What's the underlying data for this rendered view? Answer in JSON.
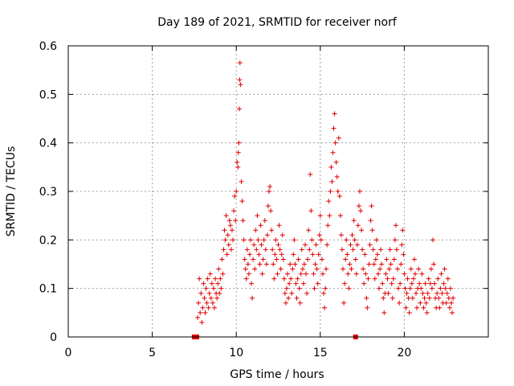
{
  "chart_data": {
    "type": "scatter",
    "title": "Day 189 of 2021, SRMTID for receiver norf",
    "xlabel": "GPS time / hours",
    "ylabel": "SRMTID / TECUs",
    "xlim": [
      0,
      25
    ],
    "ylim": [
      0,
      0.6
    ],
    "xticks": [
      "0",
      "5",
      "10",
      "15",
      "20"
    ],
    "yticks": [
      "0",
      "0.1",
      "0.2",
      "0.3",
      "0.4",
      "0.5",
      "0.6"
    ],
    "grid": true,
    "marker": "+",
    "color": "#e00000",
    "gap_markers_x": [
      7.5,
      7.65,
      17.1
    ],
    "series": [
      {
        "name": "SRMTID",
        "points": [
          [
            7.7,
            0.04
          ],
          [
            7.75,
            0.07
          ],
          [
            7.8,
            0.12
          ],
          [
            7.85,
            0.05
          ],
          [
            7.9,
            0.09
          ],
          [
            7.95,
            0.03
          ],
          [
            8.0,
            0.06
          ],
          [
            8.05,
            0.11
          ],
          [
            8.1,
            0.08
          ],
          [
            8.15,
            0.05
          ],
          [
            8.2,
            0.1
          ],
          [
            8.25,
            0.07
          ],
          [
            8.3,
            0.12
          ],
          [
            8.35,
            0.06
          ],
          [
            8.4,
            0.09
          ],
          [
            8.45,
            0.13
          ],
          [
            8.5,
            0.08
          ],
          [
            8.55,
            0.11
          ],
          [
            8.6,
            0.07
          ],
          [
            8.65,
            0.1
          ],
          [
            8.7,
            0.06
          ],
          [
            8.75,
            0.12
          ],
          [
            8.8,
            0.09
          ],
          [
            8.85,
            0.08
          ],
          [
            8.9,
            0.11
          ],
          [
            8.95,
            0.14
          ],
          [
            9.0,
            0.09
          ],
          [
            9.05,
            0.12
          ],
          [
            9.1,
            0.1
          ],
          [
            9.15,
            0.16
          ],
          [
            9.2,
            0.13
          ],
          [
            9.25,
            0.18
          ],
          [
            9.3,
            0.22
          ],
          [
            9.35,
            0.2
          ],
          [
            9.4,
            0.25
          ],
          [
            9.45,
            0.17
          ],
          [
            9.5,
            0.21
          ],
          [
            9.55,
            0.19
          ],
          [
            9.6,
            0.24
          ],
          [
            9.65,
            0.23
          ],
          [
            9.7,
            0.18
          ],
          [
            9.75,
            0.22
          ],
          [
            9.8,
            0.2
          ],
          [
            9.85,
            0.26
          ],
          [
            9.9,
            0.29
          ],
          [
            9.95,
            0.24
          ],
          [
            10.0,
            0.3
          ],
          [
            10.05,
            0.36
          ],
          [
            10.1,
            0.35
          ],
          [
            10.12,
            0.38
          ],
          [
            10.15,
            0.4
          ],
          [
            10.18,
            0.47
          ],
          [
            10.2,
            0.53
          ],
          [
            10.22,
            0.565
          ],
          [
            10.25,
            0.52
          ],
          [
            10.3,
            0.32
          ],
          [
            10.35,
            0.28
          ],
          [
            10.4,
            0.24
          ],
          [
            10.45,
            0.2
          ],
          [
            10.5,
            0.16
          ],
          [
            10.55,
            0.14
          ],
          [
            10.6,
            0.12
          ],
          [
            10.65,
            0.18
          ],
          [
            10.7,
            0.15
          ],
          [
            10.75,
            0.13
          ],
          [
            10.8,
            0.17
          ],
          [
            10.85,
            0.2
          ],
          [
            10.9,
            0.11
          ],
          [
            10.95,
            0.08
          ],
          [
            11.0,
            0.16
          ],
          [
            11.05,
            0.19
          ],
          [
            11.1,
            0.14
          ],
          [
            11.15,
            0.22
          ],
          [
            11.2,
            0.18
          ],
          [
            11.25,
            0.25
          ],
          [
            11.3,
            0.2
          ],
          [
            11.35,
            0.17
          ],
          [
            11.4,
            0.15
          ],
          [
            11.45,
            0.23
          ],
          [
            11.5,
            0.19
          ],
          [
            11.55,
            0.13
          ],
          [
            11.6,
            0.16
          ],
          [
            11.65,
            0.2
          ],
          [
            11.7,
            0.24
          ],
          [
            11.75,
            0.18
          ],
          [
            11.8,
            0.15
          ],
          [
            11.85,
            0.21
          ],
          [
            11.9,
            0.27
          ],
          [
            11.95,
            0.3
          ],
          [
            12.0,
            0.31
          ],
          [
            12.05,
            0.26
          ],
          [
            12.1,
            0.22
          ],
          [
            12.15,
            0.18
          ],
          [
            12.2,
            0.15
          ],
          [
            12.25,
            0.12
          ],
          [
            12.3,
            0.17
          ],
          [
            12.35,
            0.2
          ],
          [
            12.4,
            0.16
          ],
          [
            12.45,
            0.13
          ],
          [
            12.5,
            0.19
          ],
          [
            12.55,
            0.23
          ],
          [
            12.6,
            0.18
          ],
          [
            12.65,
            0.14
          ],
          [
            12.7,
            0.17
          ],
          [
            12.75,
            0.21
          ],
          [
            12.8,
            0.16
          ],
          [
            12.85,
            0.12
          ],
          [
            12.9,
            0.09
          ],
          [
            12.95,
            0.07
          ],
          [
            13.0,
            0.1
          ],
          [
            13.05,
            0.13
          ],
          [
            13.1,
            0.08
          ],
          [
            13.15,
            0.11
          ],
          [
            13.2,
            0.15
          ],
          [
            13.25,
            0.12
          ],
          [
            13.3,
            0.09
          ],
          [
            13.35,
            0.14
          ],
          [
            13.4,
            0.17
          ],
          [
            13.45,
            0.2
          ],
          [
            13.5,
            0.15
          ],
          [
            13.55,
            0.11
          ],
          [
            13.6,
            0.08
          ],
          [
            13.65,
            0.12
          ],
          [
            13.7,
            0.16
          ],
          [
            13.75,
            0.1
          ],
          [
            13.8,
            0.07
          ],
          [
            13.85,
            0.13
          ],
          [
            13.9,
            0.18
          ],
          [
            13.95,
            0.14
          ],
          [
            14.0,
            0.11
          ],
          [
            14.05,
            0.15
          ],
          [
            14.1,
            0.19
          ],
          [
            14.15,
            0.13
          ],
          [
            14.2,
            0.09
          ],
          [
            14.25,
            0.16
          ],
          [
            14.3,
            0.22
          ],
          [
            14.35,
            0.18
          ],
          [
            14.4,
            0.335
          ],
          [
            14.45,
            0.26
          ],
          [
            14.5,
            0.2
          ],
          [
            14.55,
            0.17
          ],
          [
            14.6,
            0.13
          ],
          [
            14.65,
            0.1
          ],
          [
            14.7,
            0.15
          ],
          [
            14.75,
            0.19
          ],
          [
            14.8,
            0.14
          ],
          [
            14.85,
            0.11
          ],
          [
            14.9,
            0.17
          ],
          [
            14.95,
            0.21
          ],
          [
            15.0,
            0.25
          ],
          [
            15.05,
            0.2
          ],
          [
            15.1,
            0.16
          ],
          [
            15.15,
            0.13
          ],
          [
            15.2,
            0.09
          ],
          [
            15.25,
            0.06
          ],
          [
            15.3,
            0.1
          ],
          [
            15.35,
            0.14
          ],
          [
            15.4,
            0.19
          ],
          [
            15.45,
            0.23
          ],
          [
            15.5,
            0.28
          ],
          [
            15.55,
            0.25
          ],
          [
            15.6,
            0.3
          ],
          [
            15.65,
            0.35
          ],
          [
            15.7,
            0.32
          ],
          [
            15.75,
            0.38
          ],
          [
            15.8,
            0.43
          ],
          [
            15.85,
            0.46
          ],
          [
            15.9,
            0.4
          ],
          [
            15.95,
            0.36
          ],
          [
            16.0,
            0.33
          ],
          [
            16.05,
            0.3
          ],
          [
            16.1,
            0.41
          ],
          [
            16.15,
            0.29
          ],
          [
            16.2,
            0.25
          ],
          [
            16.25,
            0.21
          ],
          [
            16.3,
            0.18
          ],
          [
            16.35,
            0.14
          ],
          [
            16.4,
            0.07
          ],
          [
            16.45,
            0.11
          ],
          [
            16.5,
            0.16
          ],
          [
            16.55,
            0.2
          ],
          [
            16.6,
            0.17
          ],
          [
            16.65,
            0.13
          ],
          [
            16.7,
            0.1
          ],
          [
            16.75,
            0.15
          ],
          [
            16.8,
            0.19
          ],
          [
            16.85,
            0.14
          ],
          [
            16.9,
            0.21
          ],
          [
            16.95,
            0.18
          ],
          [
            17.0,
            0.24
          ],
          [
            17.05,
            0.2
          ],
          [
            17.1,
            0.16
          ],
          [
            17.15,
            0.13
          ],
          [
            17.2,
            0.19
          ],
          [
            17.25,
            0.23
          ],
          [
            17.3,
            0.27
          ],
          [
            17.35,
            0.3
          ],
          [
            17.4,
            0.26
          ],
          [
            17.45,
            0.22
          ],
          [
            17.5,
            0.18
          ],
          [
            17.55,
            0.14
          ],
          [
            17.6,
            0.11
          ],
          [
            17.65,
            0.17
          ],
          [
            17.7,
            0.13
          ],
          [
            17.75,
            0.08
          ],
          [
            17.8,
            0.06
          ],
          [
            17.85,
            0.12
          ],
          [
            17.9,
            0.15
          ],
          [
            17.95,
            0.19
          ],
          [
            18.0,
            0.24
          ],
          [
            18.05,
            0.27
          ],
          [
            18.1,
            0.22
          ],
          [
            18.15,
            0.18
          ],
          [
            18.2,
            0.15
          ],
          [
            18.25,
            0.12
          ],
          [
            18.3,
            0.16
          ],
          [
            18.35,
            0.2
          ],
          [
            18.4,
            0.17
          ],
          [
            18.45,
            0.13
          ],
          [
            18.5,
            0.1
          ],
          [
            18.55,
            0.14
          ],
          [
            18.6,
            0.18
          ],
          [
            18.65,
            0.15
          ],
          [
            18.7,
            0.11
          ],
          [
            18.75,
            0.08
          ],
          [
            18.8,
            0.05
          ],
          [
            18.85,
            0.09
          ],
          [
            18.9,
            0.13
          ],
          [
            18.95,
            0.16
          ],
          [
            19.0,
            0.12
          ],
          [
            19.05,
            0.09
          ],
          [
            19.1,
            0.14
          ],
          [
            19.15,
            0.18
          ],
          [
            19.2,
            0.15
          ],
          [
            19.25,
            0.11
          ],
          [
            19.3,
            0.08
          ],
          [
            19.35,
            0.12
          ],
          [
            19.4,
            0.16
          ],
          [
            19.45,
            0.2
          ],
          [
            19.5,
            0.23
          ],
          [
            19.55,
            0.18
          ],
          [
            19.6,
            0.14
          ],
          [
            19.65,
            0.1
          ],
          [
            19.7,
            0.07
          ],
          [
            19.75,
            0.11
          ],
          [
            19.8,
            0.15
          ],
          [
            19.85,
            0.19
          ],
          [
            19.9,
            0.22
          ],
          [
            19.95,
            0.17
          ],
          [
            20.0,
            0.13
          ],
          [
            20.05,
            0.1
          ],
          [
            20.1,
            0.06
          ],
          [
            20.15,
            0.09
          ],
          [
            20.2,
            0.12
          ],
          [
            20.25,
            0.08
          ],
          [
            20.3,
            0.05
          ],
          [
            20.35,
            0.1
          ],
          [
            20.4,
            0.14
          ],
          [
            20.45,
            0.11
          ],
          [
            20.5,
            0.08
          ],
          [
            20.55,
            0.12
          ],
          [
            20.6,
            0.16
          ],
          [
            20.65,
            0.13
          ],
          [
            20.7,
            0.09
          ],
          [
            20.75,
            0.06
          ],
          [
            20.8,
            0.1
          ],
          [
            20.85,
            0.14
          ],
          [
            20.9,
            0.11
          ],
          [
            20.95,
            0.07
          ],
          [
            21.0,
            0.1
          ],
          [
            21.05,
            0.13
          ],
          [
            21.1,
            0.09
          ],
          [
            21.15,
            0.06
          ],
          [
            21.2,
            0.08
          ],
          [
            21.25,
            0.11
          ],
          [
            21.3,
            0.07
          ],
          [
            21.35,
            0.05
          ],
          [
            21.4,
            0.09
          ],
          [
            21.45,
            0.12
          ],
          [
            21.5,
            0.08
          ],
          [
            21.55,
            0.11
          ],
          [
            21.6,
            0.14
          ],
          [
            21.65,
            0.1
          ],
          [
            21.7,
            0.2
          ],
          [
            21.75,
            0.15
          ],
          [
            21.8,
            0.11
          ],
          [
            21.85,
            0.08
          ],
          [
            21.9,
            0.06
          ],
          [
            21.95,
            0.09
          ],
          [
            22.0,
            0.12
          ],
          [
            22.05,
            0.08
          ],
          [
            22.1,
            0.06
          ],
          [
            22.15,
            0.1
          ],
          [
            22.2,
            0.13
          ],
          [
            22.25,
            0.09
          ],
          [
            22.3,
            0.07
          ],
          [
            22.35,
            0.11
          ],
          [
            22.4,
            0.14
          ],
          [
            22.45,
            0.1
          ],
          [
            22.5,
            0.07
          ],
          [
            22.55,
            0.09
          ],
          [
            22.6,
            0.12
          ],
          [
            22.65,
            0.08
          ],
          [
            22.7,
            0.06
          ],
          [
            22.75,
            0.1
          ],
          [
            22.8,
            0.07
          ],
          [
            22.85,
            0.05
          ],
          [
            22.9,
            0.08
          ]
        ]
      }
    ]
  }
}
